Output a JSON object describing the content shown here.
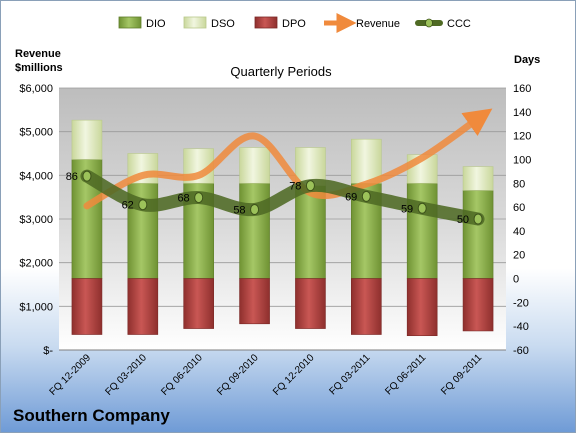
{
  "chart_data": {
    "type": "bar",
    "title": "Quarterly Periods",
    "left_axis_label": [
      "Revenue",
      "$millions"
    ],
    "right_axis_label": "Days",
    "categories": [
      "FQ 12-2009",
      "FQ 03-2010",
      "FQ 06-2010",
      "FQ 09-2010",
      "FQ 12-2010",
      "FQ 03-2011",
      "FQ 06-2011",
      "FQ 09-2011"
    ],
    "left_axis": {
      "min": 0,
      "max": 6000,
      "step": 1000,
      "tick_labels": [
        "$-",
        "$1,000",
        "$2,000",
        "$3,000",
        "$4,000",
        "$5,000",
        "$6,000"
      ]
    },
    "right_axis": {
      "min": -60,
      "max": 160,
      "step": 20,
      "tick_labels": [
        "-60",
        "-40",
        "-20",
        "0",
        "20",
        "40",
        "60",
        "80",
        "100",
        "120",
        "140",
        "160"
      ]
    },
    "grid": true,
    "legend_position": "top",
    "legend": [
      "DIO",
      "DSO",
      "DPO",
      "Revenue",
      "CCC"
    ],
    "series": [
      {
        "name": "DIO",
        "axis": "right",
        "kind": "stacked-bar",
        "color": "#8db04a",
        "values": [
          100,
          80,
          80,
          80,
          78,
          80,
          80,
          74
        ]
      },
      {
        "name": "DSO",
        "axis": "right",
        "kind": "stacked-bar",
        "color": "#e4eec6",
        "values": [
          33,
          25,
          29,
          30,
          32,
          37,
          24,
          20
        ]
      },
      {
        "name": "DPO",
        "axis": "right",
        "kind": "bar",
        "color": "#c0504d",
        "values": [
          -47,
          -47,
          -42,
          -38,
          -42,
          -47,
          -48,
          -44
        ]
      },
      {
        "name": "Revenue",
        "axis": "left",
        "kind": "line",
        "color": "#f08a3c",
        "values": [
          3300,
          4000,
          4000,
          4900,
          3600,
          3800,
          4400,
          5300
        ]
      },
      {
        "name": "CCC",
        "axis": "right",
        "kind": "line",
        "color": "#4f6a24",
        "values": [
          86,
          62,
          68,
          58,
          78,
          69,
          59,
          50
        ]
      }
    ],
    "company": "Southern Company"
  }
}
